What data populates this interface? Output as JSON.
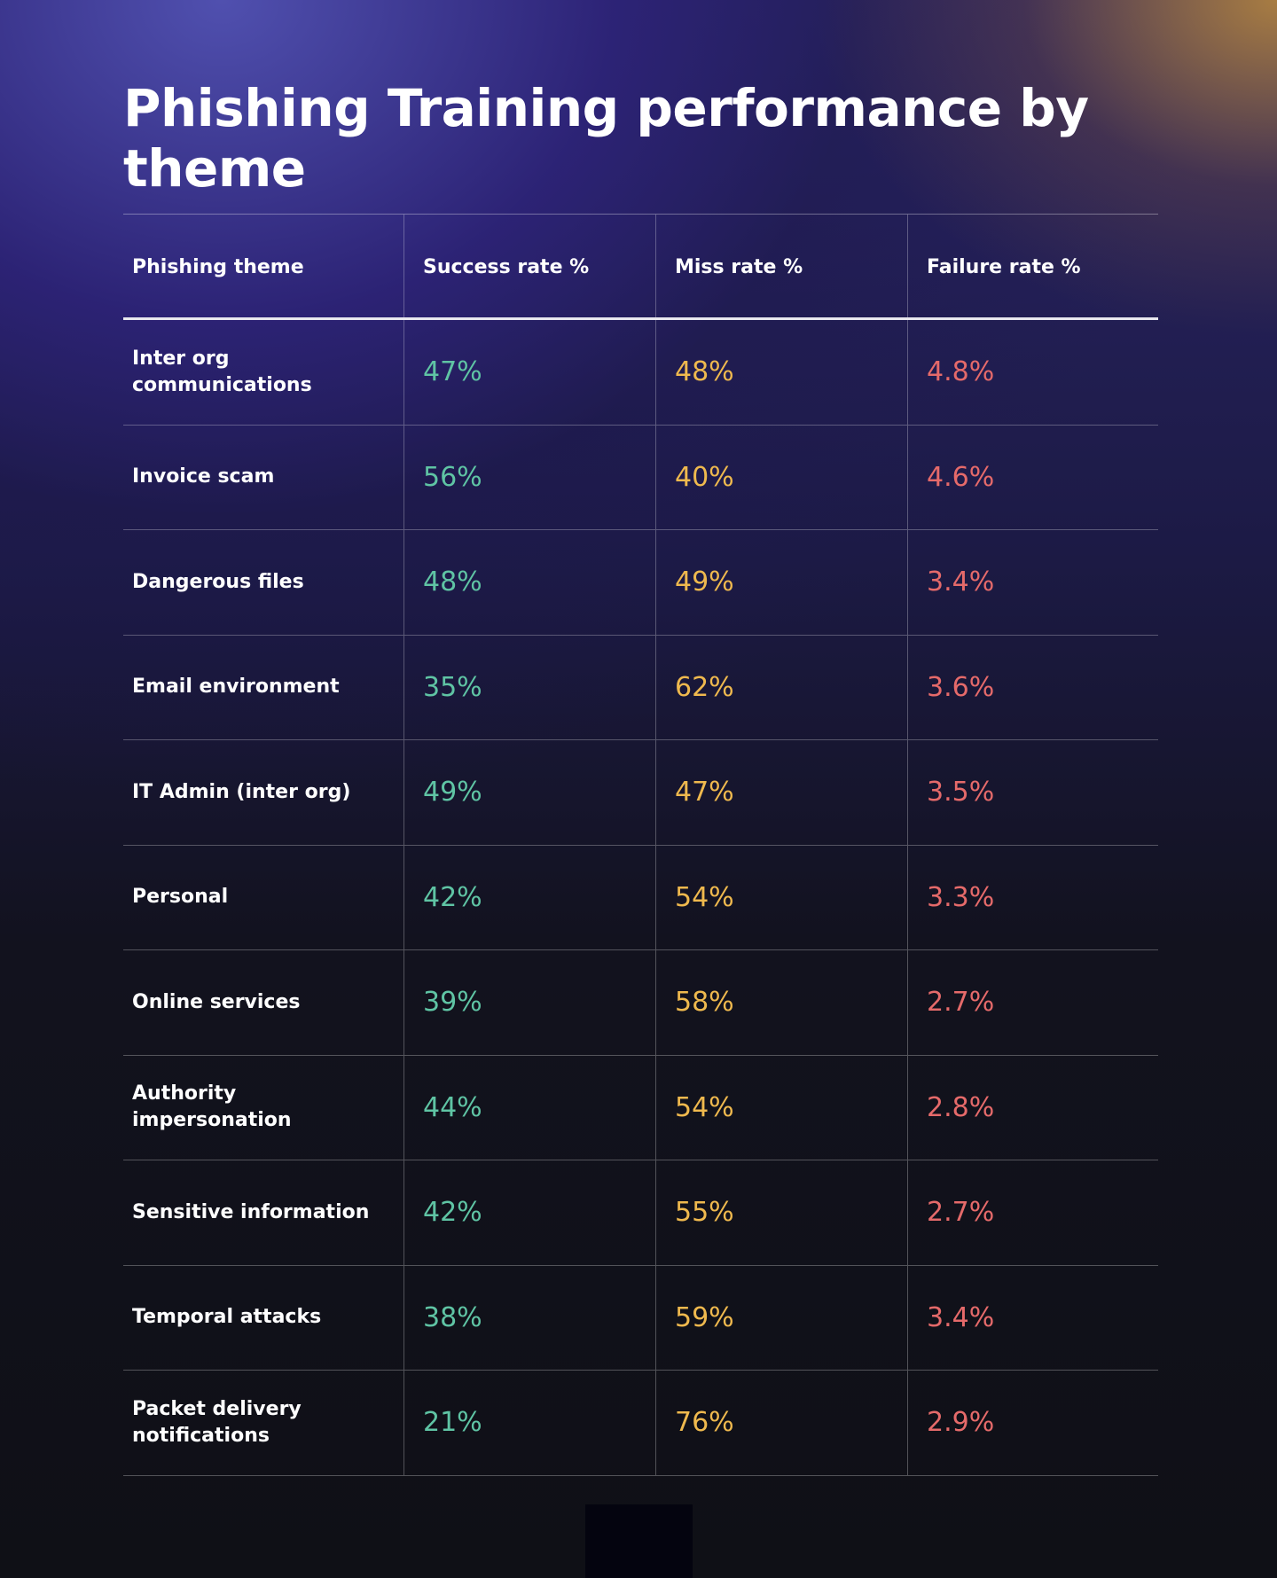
{
  "title": "Phishing Training performance by theme",
  "colors": {
    "success": "#5fc4a4",
    "miss": "#efb94e",
    "failure": "#e56a6a"
  },
  "headers": [
    "Phishing theme",
    "Success rate %",
    "Miss rate %",
    "Failure rate %"
  ],
  "rows": [
    {
      "theme": "Inter org communications",
      "success": "47%",
      "miss": "48%",
      "failure": "4.8%"
    },
    {
      "theme": "Invoice scam",
      "success": "56%",
      "miss": "40%",
      "failure": "4.6%"
    },
    {
      "theme": "Dangerous files",
      "success": "48%",
      "miss": "49%",
      "failure": "3.4%"
    },
    {
      "theme": "Email environment",
      "success": "35%",
      "miss": "62%",
      "failure": "3.6%"
    },
    {
      "theme": "IT Admin (inter org)",
      "success": "49%",
      "miss": "47%",
      "failure": "3.5%"
    },
    {
      "theme": "Personal",
      "success": "42%",
      "miss": "54%",
      "failure": "3.3%"
    },
    {
      "theme": "Online services",
      "success": "39%",
      "miss": "58%",
      "failure": "2.7%"
    },
    {
      "theme": "Authority impersonation",
      "success": "44%",
      "miss": "54%",
      "failure": "2.8%"
    },
    {
      "theme": "Sensitive information",
      "success": "42%",
      "miss": "55%",
      "failure": "2.7%"
    },
    {
      "theme": "Temporal attacks",
      "success": "38%",
      "miss": "59%",
      "failure": "3.4%"
    },
    {
      "theme": "Packet delivery notifications",
      "success": "21%",
      "miss": "76%",
      "failure": "2.9%"
    }
  ]
}
